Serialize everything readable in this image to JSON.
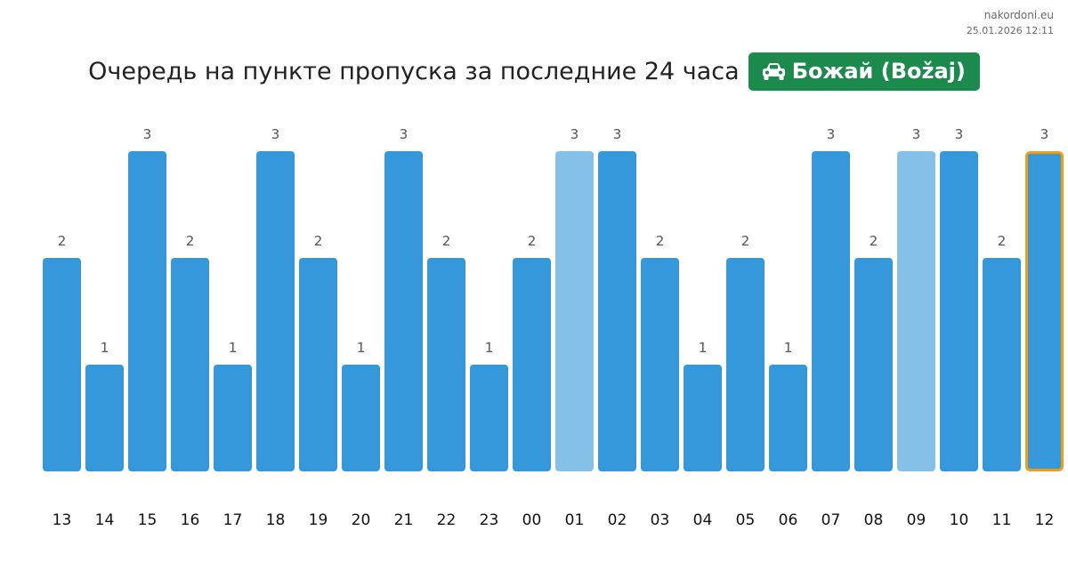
{
  "brand": {
    "site": "nakordoni.eu",
    "timestamp": "25.01.2026 12:11"
  },
  "header": {
    "title": "Очередь на пункте пропуска за последние 24 часа",
    "checkpoint": "Божай (Božaj)",
    "checkpoint_icon": "car-icon",
    "badge_color": "#1b8a4c"
  },
  "chart_data": {
    "type": "bar",
    "categories": [
      "13",
      "14",
      "15",
      "16",
      "17",
      "18",
      "19",
      "20",
      "21",
      "22",
      "23",
      "00",
      "01",
      "02",
      "03",
      "04",
      "05",
      "06",
      "07",
      "08",
      "09",
      "10",
      "11",
      "12"
    ],
    "values": [
      2,
      1,
      3,
      2,
      1,
      3,
      2,
      1,
      3,
      2,
      1,
      2,
      3,
      3,
      2,
      1,
      2,
      1,
      3,
      2,
      3,
      3,
      2,
      3
    ],
    "colors": {
      "bar": "#3598db",
      "bar_light": "#85c0e9",
      "current_outline": "#f39c12"
    },
    "light_bars": [
      "01",
      "09"
    ],
    "highlighted": "12",
    "ylim": [
      0,
      3
    ],
    "grid": false,
    "data_labels": true
  }
}
